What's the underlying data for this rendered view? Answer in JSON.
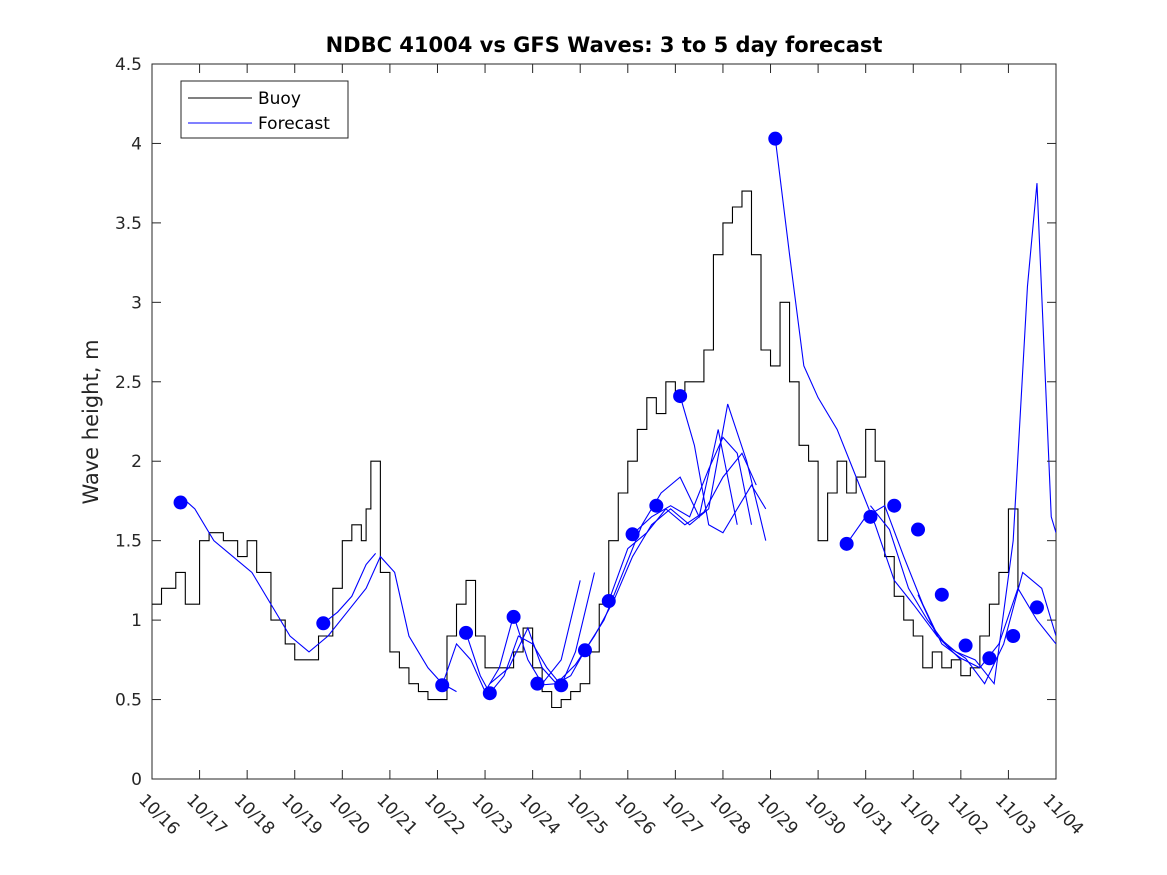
{
  "chart_data": {
    "type": "line",
    "title": "NDBC 41004 vs GFS Waves: 3 to 5 day forecast",
    "xlabel": "",
    "ylabel": "Wave height, m",
    "xlim": [
      0,
      19
    ],
    "ylim": [
      0,
      4.5
    ],
    "x_ticks": [
      0,
      1,
      2,
      3,
      4,
      5,
      6,
      7,
      8,
      9,
      10,
      11,
      12,
      13,
      14,
      15,
      16,
      17,
      18,
      19
    ],
    "x_tick_labels": [
      "10/16",
      "10/17",
      "10/18",
      "10/19",
      "10/20",
      "10/21",
      "10/22",
      "10/23",
      "10/24",
      "10/25",
      "10/26",
      "10/27",
      "10/28",
      "10/29",
      "10/30",
      "10/31",
      "11/01",
      "11/02",
      "11/03",
      "11/04"
    ],
    "y_ticks": [
      0,
      0.5,
      1,
      1.5,
      2,
      2.5,
      3,
      3.5,
      4,
      4.5
    ],
    "y_tick_labels": [
      "0",
      "0.5",
      "1",
      "1.5",
      "2",
      "2.5",
      "3",
      "3.5",
      "4",
      "4.5"
    ],
    "grid": false,
    "legend": {
      "position": "top-left",
      "entries": [
        {
          "label": "Buoy",
          "color": "#000000"
        },
        {
          "label": "Forecast",
          "color": "#0000ff"
        }
      ]
    },
    "colors": {
      "buoy": "#000000",
      "forecast": "#0000ff",
      "marker": "#0000ff"
    },
    "buoy": {
      "name": "Buoy",
      "x": [
        0.0,
        0.2,
        0.5,
        0.7,
        1.0,
        1.2,
        1.5,
        1.8,
        2.0,
        2.2,
        2.5,
        2.8,
        3.0,
        3.2,
        3.5,
        3.8,
        4.0,
        4.2,
        4.4,
        4.5,
        4.6,
        4.8,
        5.0,
        5.2,
        5.4,
        5.6,
        5.8,
        6.0,
        6.2,
        6.4,
        6.6,
        6.8,
        7.0,
        7.2,
        7.4,
        7.6,
        7.8,
        8.0,
        8.2,
        8.4,
        8.6,
        8.8,
        9.0,
        9.2,
        9.4,
        9.6,
        9.8,
        10.0,
        10.2,
        10.4,
        10.6,
        10.8,
        11.0,
        11.2,
        11.4,
        11.6,
        11.8,
        12.0,
        12.2,
        12.4,
        12.6,
        12.8,
        13.0,
        13.2,
        13.4,
        13.6,
        13.8,
        14.0,
        14.2,
        14.4,
        14.6,
        14.8,
        15.0,
        15.2,
        15.4,
        15.6,
        15.8,
        16.0,
        16.2,
        16.4,
        16.6,
        16.8,
        17.0,
        17.2,
        17.4,
        17.6,
        17.8,
        18.0,
        18.2
      ],
      "values": [
        1.1,
        1.2,
        1.3,
        1.1,
        1.5,
        1.55,
        1.5,
        1.4,
        1.5,
        1.3,
        1.0,
        0.85,
        0.75,
        0.75,
        0.9,
        1.2,
        1.5,
        1.6,
        1.5,
        1.7,
        2.0,
        1.3,
        0.8,
        0.7,
        0.6,
        0.55,
        0.5,
        0.5,
        0.9,
        1.1,
        1.25,
        0.9,
        0.7,
        0.7,
        0.7,
        0.8,
        0.95,
        0.7,
        0.55,
        0.45,
        0.5,
        0.55,
        0.6,
        0.8,
        1.1,
        1.5,
        1.8,
        2.0,
        2.2,
        2.4,
        2.3,
        2.5,
        2.4,
        2.5,
        2.5,
        2.7,
        3.3,
        3.5,
        3.6,
        3.7,
        3.3,
        2.7,
        2.6,
        3.0,
        2.5,
        2.1,
        2.0,
        1.5,
        1.8,
        2.0,
        1.8,
        1.9,
        2.2,
        2.0,
        1.4,
        1.15,
        1.0,
        0.9,
        0.7,
        0.8,
        0.7,
        0.75,
        0.65,
        0.7,
        0.9,
        1.1,
        1.3,
        1.7,
        1.2
      ]
    },
    "forecast_lines": [
      {
        "x": [
          0.6,
          0.9,
          1.3,
          1.7,
          2.1,
          2.5,
          2.9,
          3.3,
          3.7,
          4.1,
          4.5,
          4.8,
          5.1,
          5.4,
          5.8,
          6.1,
          6.4
        ],
        "values": [
          1.78,
          1.7,
          1.5,
          1.4,
          1.3,
          1.1,
          0.9,
          0.8,
          0.9,
          1.05,
          1.2,
          1.4,
          1.3,
          0.9,
          0.7,
          0.6,
          0.55
        ]
      },
      {
        "x": [
          3.6,
          3.9,
          4.2,
          4.5,
          4.7
        ],
        "values": [
          0.98,
          1.05,
          1.15,
          1.35,
          1.42
        ]
      },
      {
        "x": [
          6.1,
          6.4,
          6.7,
          7.0,
          7.3,
          7.6,
          7.9,
          8.2,
          8.6,
          9.0
        ],
        "values": [
          0.59,
          0.85,
          0.75,
          0.55,
          0.7,
          1.03,
          0.75,
          0.6,
          0.75,
          1.25
        ]
      },
      {
        "x": [
          6.6,
          6.9,
          7.1,
          7.4,
          7.7,
          8.0,
          8.3,
          8.6,
          8.9,
          9.3
        ],
        "values": [
          0.92,
          0.65,
          0.54,
          0.65,
          0.9,
          0.85,
          0.7,
          0.59,
          0.8,
          1.3
        ]
      },
      {
        "x": [
          7.1,
          7.5,
          7.9,
          8.2,
          8.5,
          8.8,
          9.1,
          9.5,
          9.9,
          10.3,
          10.7,
          11.1,
          11.5,
          11.9,
          12.3
        ],
        "values": [
          0.6,
          0.7,
          0.95,
          0.7,
          0.6,
          0.65,
          0.81,
          1.0,
          1.3,
          1.6,
          1.8,
          1.9,
          1.65,
          2.2,
          1.6
        ]
      },
      {
        "x": [
          8.1,
          8.5,
          8.9,
          9.3,
          9.7,
          10.1,
          10.5,
          10.9,
          11.3,
          11.7,
          12.1,
          12.5,
          12.9
        ],
        "values": [
          0.59,
          0.6,
          0.72,
          0.9,
          1.12,
          1.4,
          1.6,
          1.7,
          1.6,
          1.7,
          2.36,
          2.0,
          1.5
        ]
      },
      {
        "x": [
          9.6,
          10.0,
          10.4,
          10.8,
          11.2,
          11.6,
          12.0,
          12.4,
          12.7
        ],
        "values": [
          1.12,
          1.45,
          1.55,
          1.7,
          1.6,
          1.68,
          1.9,
          2.05,
          1.85
        ]
      },
      {
        "x": [
          10.1,
          10.5,
          10.9,
          11.3,
          11.7,
          12.0,
          12.3,
          12.6
        ],
        "values": [
          1.54,
          1.65,
          1.72,
          1.65,
          1.95,
          2.15,
          2.05,
          1.6
        ]
      },
      {
        "x": [
          11.1,
          11.4,
          11.7,
          12.0,
          12.3,
          12.6,
          12.9
        ],
        "values": [
          2.41,
          2.1,
          1.6,
          1.55,
          1.7,
          1.85,
          1.7
        ]
      },
      {
        "x": [
          13.1,
          13.4,
          13.7,
          14.0,
          14.4,
          14.8,
          15.2,
          15.6,
          16.0,
          16.5,
          17.0
        ],
        "values": [
          4.03,
          3.3,
          2.6,
          2.4,
          2.2,
          1.9,
          1.6,
          1.25,
          1.1,
          0.9,
          0.75
        ]
      },
      {
        "x": [
          14.6,
          15.0,
          15.4,
          15.8,
          16.2,
          16.6,
          17.0,
          17.4,
          17.8,
          18.2,
          18.6,
          19.0
        ],
        "values": [
          1.48,
          1.65,
          1.72,
          1.4,
          1.1,
          0.85,
          0.76,
          0.7,
          0.85,
          1.2,
          1.0,
          0.85
        ]
      },
      {
        "x": [
          15.1,
          15.5,
          15.9,
          16.3,
          16.7,
          17.1,
          17.5,
          17.9,
          18.3,
          18.7,
          19.0
        ],
        "values": [
          1.72,
          1.57,
          1.2,
          1.0,
          0.84,
          0.76,
          0.6,
          0.85,
          1.3,
          1.2,
          0.9
        ]
      },
      {
        "x": [
          16.1,
          16.5,
          16.9,
          17.3,
          17.7,
          18.1,
          18.4,
          18.6,
          18.9,
          19.0
        ],
        "values": [
          1.16,
          0.9,
          0.8,
          0.75,
          0.6,
          1.5,
          3.1,
          3.75,
          1.65,
          1.55
        ]
      }
    ],
    "forecast_markers": {
      "x": [
        0.6,
        3.6,
        6.1,
        6.6,
        7.1,
        7.6,
        8.1,
        8.6,
        9.1,
        9.6,
        10.1,
        10.6,
        11.1,
        13.1,
        14.6,
        15.1,
        15.6,
        16.1,
        16.6,
        17.1,
        17.6,
        18.1,
        18.6
      ],
      "values": [
        1.74,
        0.98,
        0.59,
        0.92,
        0.54,
        1.02,
        0.6,
        0.59,
        0.81,
        1.12,
        1.54,
        1.72,
        2.41,
        4.03,
        1.48,
        1.65,
        1.72,
        1.57,
        1.16,
        0.84,
        0.76,
        0.9,
        1.08
      ]
    }
  }
}
